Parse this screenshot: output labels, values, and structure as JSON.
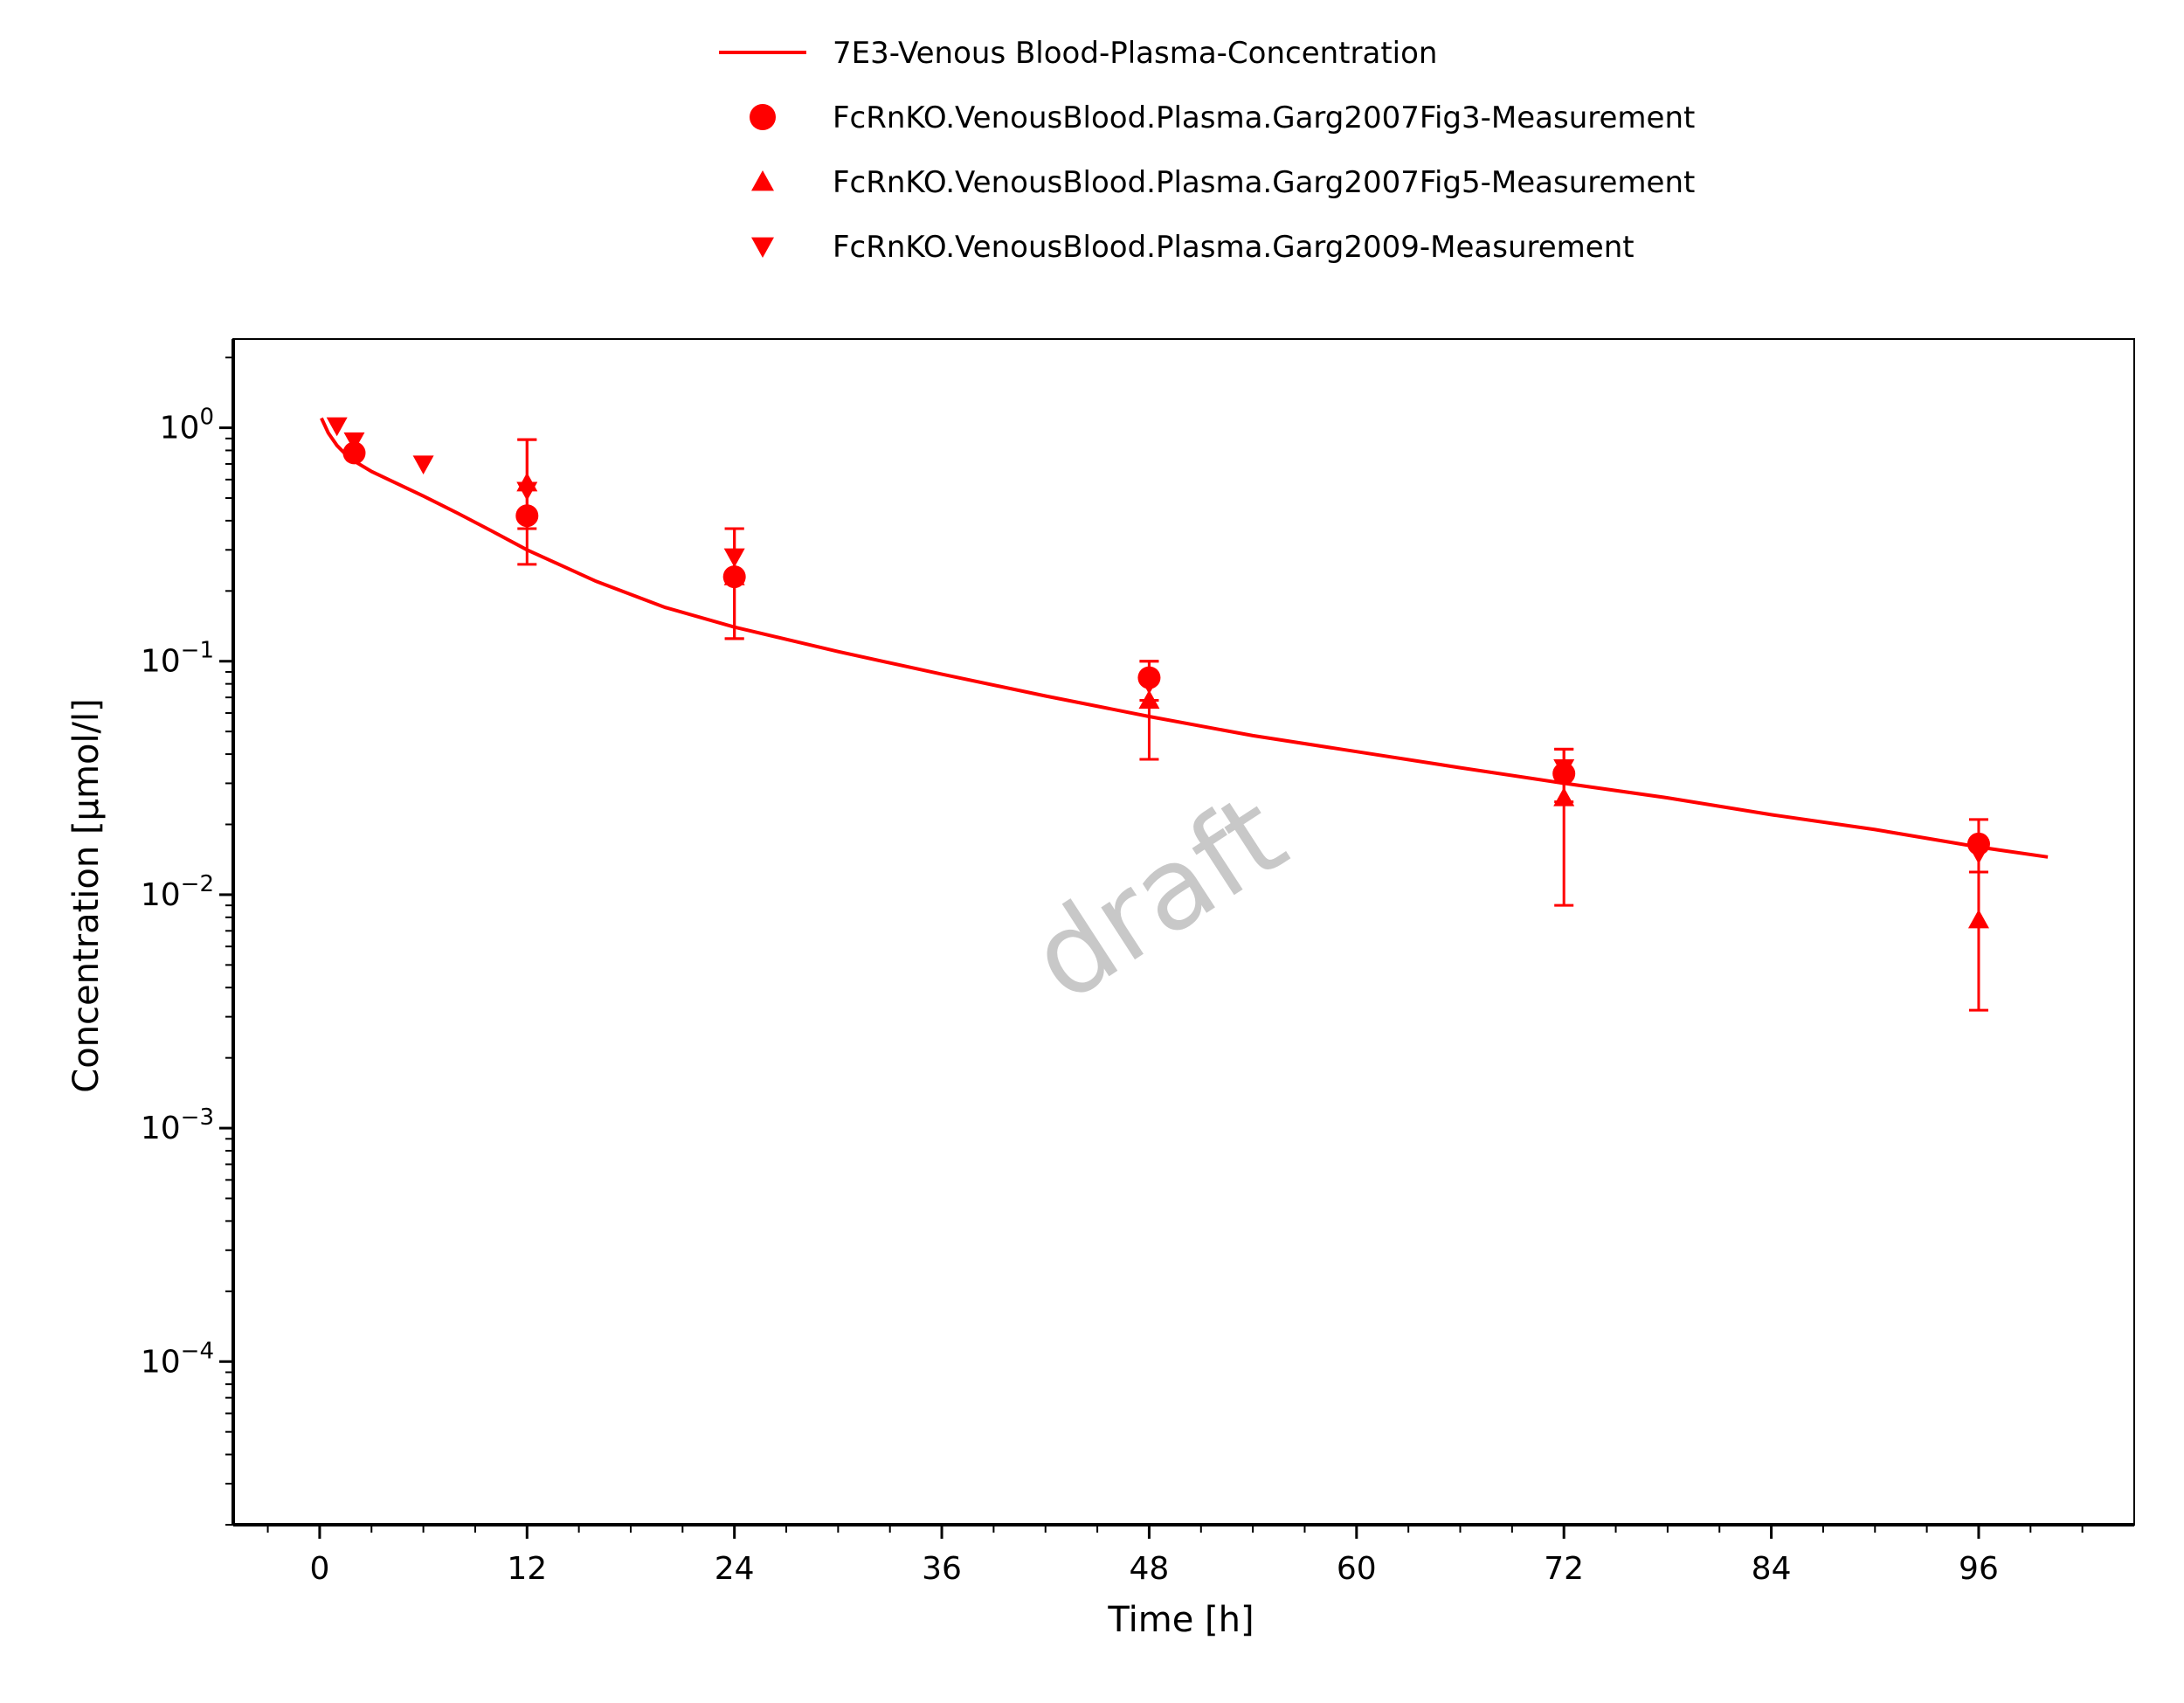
{
  "chart_data": {
    "type": "scatter",
    "title": "",
    "xlabel": "Time [h]",
    "ylabel": "Concentration [µmol/l]",
    "x_scale": "linear",
    "y_scale": "log",
    "xlim": [
      -5,
      105
    ],
    "ylim": [
      2e-05,
      2.4
    ],
    "x_ticks": [
      0,
      12,
      24,
      36,
      48,
      60,
      72,
      84,
      96
    ],
    "x_tick_labels": [
      "0",
      "12",
      "24",
      "36",
      "48",
      "60",
      "72",
      "84",
      "96"
    ],
    "y_ticks": [
      1,
      0.1,
      0.01,
      0.001,
      0.0001
    ],
    "y_tick_labels": [
      {
        "base": "10",
        "exp": "0"
      },
      {
        "base": "10",
        "exp": "−1"
      },
      {
        "base": "10",
        "exp": "−2"
      },
      {
        "base": "10",
        "exp": "−3"
      },
      {
        "base": "10",
        "exp": "−4"
      }
    ],
    "grid": false,
    "legend_position": "top-center",
    "color": "#ff0000",
    "watermark": "draft",
    "series": [
      {
        "name": "7E3-Venous Blood-Plasma-Concentration",
        "kind": "line",
        "x": [
          0.1,
          0.5,
          1,
          1.5,
          2,
          3,
          4,
          6,
          8,
          10,
          12,
          16,
          20,
          24,
          30,
          36,
          42,
          48,
          54,
          60,
          66,
          72,
          78,
          84,
          90,
          96,
          100
        ],
        "y": [
          1.1,
          0.95,
          0.84,
          0.77,
          0.72,
          0.65,
          0.6,
          0.51,
          0.43,
          0.36,
          0.3,
          0.22,
          0.17,
          0.14,
          0.11,
          0.088,
          0.071,
          0.058,
          0.048,
          0.041,
          0.035,
          0.03,
          0.026,
          0.022,
          0.019,
          0.016,
          0.0145
        ]
      },
      {
        "name": "FcRnKO.VenousBlood.Plasma.Garg2007Fig3-Measurement",
        "kind": "marker",
        "marker": "circle",
        "points": [
          {
            "x": 2,
            "y": 0.78
          },
          {
            "x": 12,
            "y": 0.42,
            "err_low": 0.26,
            "err_high": 0.89
          },
          {
            "x": 24,
            "y": 0.23,
            "err_low": 0.125,
            "err_high": 0.37
          },
          {
            "x": 48,
            "y": 0.085,
            "err_low": 0.068,
            "err_high": 0.1
          },
          {
            "x": 72,
            "y": 0.033,
            "err_low": 0.025,
            "err_high": 0.042
          },
          {
            "x": 96,
            "y": 0.0165,
            "err_low": 0.0125,
            "err_high": 0.021
          }
        ]
      },
      {
        "name": "FcRnKO.VenousBlood.Plasma.Garg2007Fig5-Measurement",
        "kind": "marker",
        "marker": "triangle-up",
        "points": [
          {
            "x": 2,
            "y": 0.82
          },
          {
            "x": 12,
            "y": 0.58,
            "err_low": 0.37,
            "err_high": 0.89
          },
          {
            "x": 24,
            "y": 0.23,
            "err_low": 0.125,
            "err_high": 0.37
          },
          {
            "x": 48,
            "y": 0.068,
            "err_low": 0.038,
            "err_high": 0.1
          },
          {
            "x": 72,
            "y": 0.026,
            "err_low": 0.009,
            "err_high": 0.042
          },
          {
            "x": 96,
            "y": 0.0078,
            "err_low": 0.0032,
            "err_high": 0.0125
          }
        ]
      },
      {
        "name": "FcRnKO.VenousBlood.Plasma.Garg2009-Measurement",
        "kind": "marker",
        "marker": "triangle-down",
        "points": [
          {
            "x": 1,
            "y": 1.02
          },
          {
            "x": 2,
            "y": 0.88
          },
          {
            "x": 6,
            "y": 0.7
          },
          {
            "x": 12,
            "y": 0.54
          },
          {
            "x": 24,
            "y": 0.28
          },
          {
            "x": 48,
            "y": 0.08
          },
          {
            "x": 72,
            "y": 0.035
          },
          {
            "x": 96,
            "y": 0.015
          }
        ]
      }
    ]
  }
}
